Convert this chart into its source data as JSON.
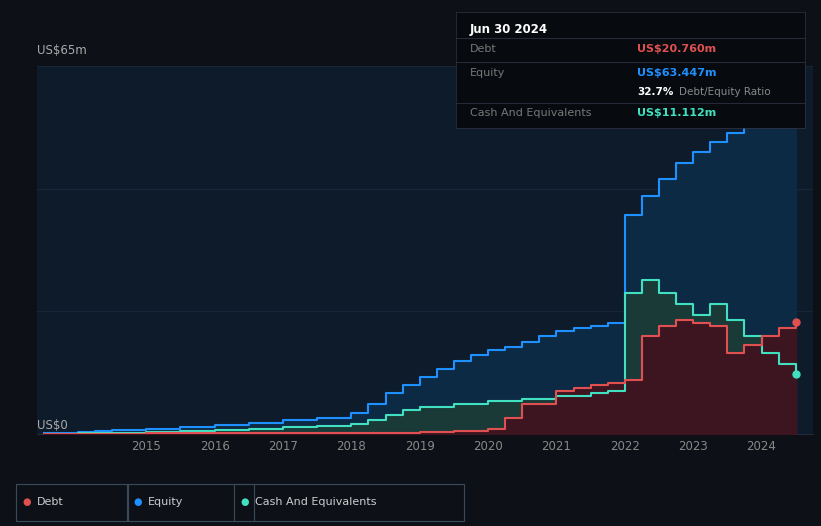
{
  "bg_color": "#0d1117",
  "chart_bg": "#0d1b2a",
  "ylabel_text": "US$65m",
  "y0_text": "US$0",
  "ylim": [
    0,
    68
  ],
  "equity_color": "#1e90ff",
  "equity_fill": "#0d2a45",
  "debt_color": "#e05050",
  "debt_fill": "#3d1520",
  "cash_color": "#40e0c0",
  "cash_fill": "#1a3a38",
  "grid_color": "#1a2a3a",
  "tooltip": {
    "date": "Jun 30 2024",
    "debt_label": "Debt",
    "debt_value": "US$20.760m",
    "equity_label": "Equity",
    "equity_value": "US$63.447m",
    "ratio_value": "32.7%",
    "ratio_label": "Debt/Equity Ratio",
    "cash_label": "Cash And Equivalents",
    "cash_value": "US$11.112m",
    "bg": "#070b0f",
    "header_color": "#ffffff",
    "debt_color": "#e05050",
    "equity_color": "#1e90ff",
    "cash_color": "#40e0c0",
    "label_color": "#777777"
  },
  "legend": {
    "debt_label": "Debt",
    "equity_label": "Equity",
    "cash_label": "Cash And Equivalents"
  },
  "equity_x": [
    2013.5,
    2014.0,
    2014.25,
    2014.5,
    2015.0,
    2015.5,
    2016.0,
    2016.5,
    2017.0,
    2017.5,
    2018.0,
    2018.25,
    2018.5,
    2018.75,
    2019.0,
    2019.25,
    2019.5,
    2019.75,
    2020.0,
    2020.25,
    2020.5,
    2020.75,
    2021.0,
    2021.25,
    2021.5,
    2021.75,
    2022.0,
    2022.25,
    2022.5,
    2022.75,
    2023.0,
    2023.25,
    2023.5,
    2023.75,
    2024.0,
    2024.25,
    2024.5
  ],
  "equity_y": [
    0.2,
    0.3,
    0.5,
    0.7,
    1.0,
    1.3,
    1.6,
    2.0,
    2.5,
    3.0,
    3.8,
    5.5,
    7.5,
    9.0,
    10.5,
    12.0,
    13.5,
    14.5,
    15.5,
    16.0,
    17.0,
    18.0,
    19.0,
    19.5,
    20.0,
    20.5,
    40.5,
    44.0,
    47.0,
    50.0,
    52.0,
    54.0,
    55.5,
    57.0,
    59.0,
    61.0,
    63.447
  ],
  "debt_x": [
    2013.5,
    2014.0,
    2014.5,
    2015.0,
    2015.5,
    2016.0,
    2016.5,
    2017.0,
    2017.5,
    2018.0,
    2018.5,
    2019.0,
    2019.5,
    2020.0,
    2020.25,
    2020.5,
    2021.0,
    2021.25,
    2021.5,
    2021.75,
    2022.0,
    2022.25,
    2022.5,
    2022.75,
    2023.0,
    2023.25,
    2023.5,
    2023.75,
    2024.0,
    2024.25,
    2024.5
  ],
  "debt_y": [
    0.05,
    0.05,
    0.05,
    0.1,
    0.1,
    0.1,
    0.1,
    0.1,
    0.15,
    0.15,
    0.2,
    0.3,
    0.5,
    1.0,
    3.0,
    5.5,
    8.0,
    8.5,
    9.0,
    9.5,
    10.0,
    18.0,
    20.0,
    21.0,
    20.5,
    20.0,
    15.0,
    16.5,
    18.0,
    19.5,
    20.76
  ],
  "cash_x": [
    2013.5,
    2014.0,
    2014.5,
    2015.0,
    2015.5,
    2016.0,
    2016.5,
    2017.0,
    2017.5,
    2018.0,
    2018.25,
    2018.5,
    2018.75,
    2019.0,
    2019.5,
    2020.0,
    2020.5,
    2021.0,
    2021.5,
    2021.75,
    2022.0,
    2022.25,
    2022.5,
    2022.75,
    2023.0,
    2023.25,
    2023.5,
    2023.75,
    2024.0,
    2024.25,
    2024.5
  ],
  "cash_y": [
    0.05,
    0.1,
    0.15,
    0.3,
    0.5,
    0.7,
    1.0,
    1.3,
    1.5,
    1.8,
    2.5,
    3.5,
    4.5,
    5.0,
    5.5,
    6.0,
    6.5,
    7.0,
    7.5,
    8.0,
    26.0,
    28.5,
    26.0,
    24.0,
    22.0,
    24.0,
    21.0,
    18.0,
    15.0,
    13.0,
    11.112
  ],
  "x_ticks": [
    2015,
    2016,
    2017,
    2018,
    2019,
    2020,
    2021,
    2022,
    2023,
    2024
  ],
  "xlim": [
    2013.4,
    2024.75
  ]
}
